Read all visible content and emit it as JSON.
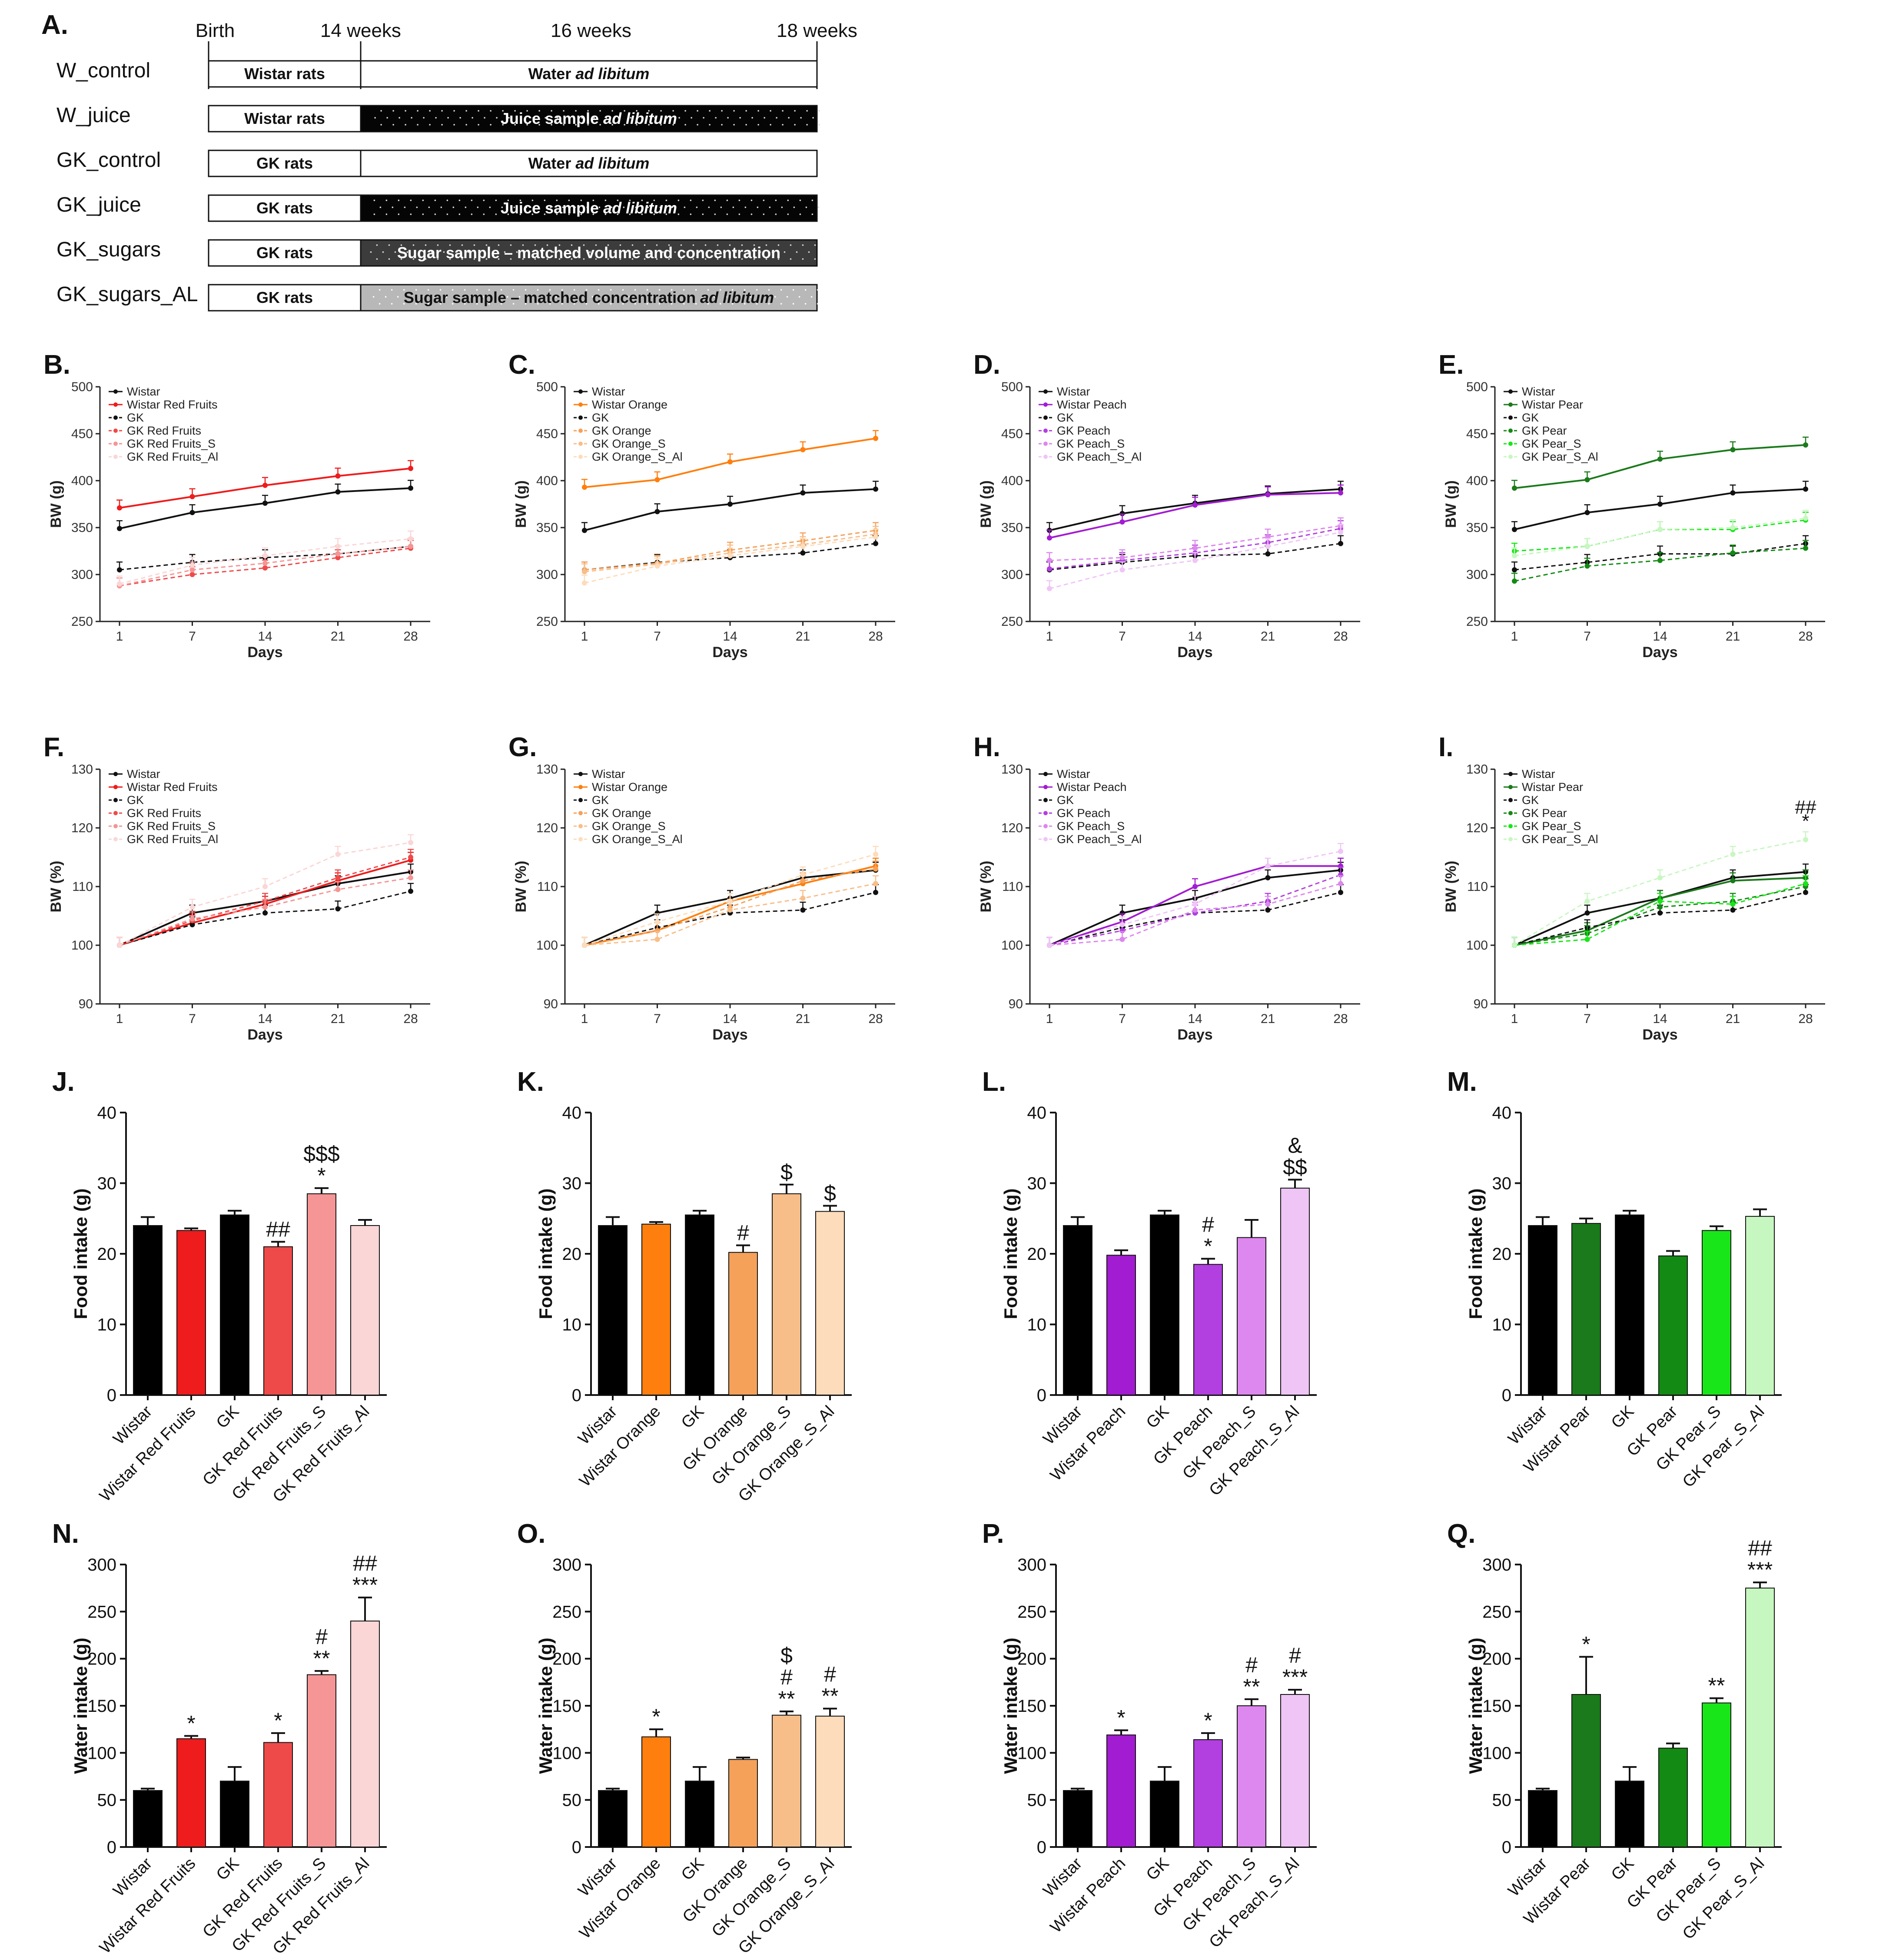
{
  "colors": {
    "red": [
      "#ee1c1c",
      "#ef4a4a",
      "#f59595",
      "#fbd6d6"
    ],
    "orange": [
      "#ff7f0e",
      "#f5a15a",
      "#f8be8a",
      "#fddcbb"
    ],
    "purple": [
      "#a21cd1",
      "#b23fe0",
      "#dd88ee",
      "#efc5f6"
    ],
    "green": [
      "#1b7a1b",
      "#138a13",
      "#19e619",
      "#c7f7c0"
    ]
  },
  "panelA": {
    "label": "A.",
    "timeline": [
      "Birth",
      "14 weeks",
      "16 weeks",
      "18 weeks"
    ],
    "rows": [
      {
        "name": "W_control",
        "animal": "Wistar rats",
        "treatment": "Water ",
        "treatment_italic": "ad libitum",
        "style": "white"
      },
      {
        "name": "W_juice",
        "animal": "Wistar rats",
        "treatment": "Juice sample ",
        "treatment_italic": "ad libitum",
        "style": "black"
      },
      {
        "name": "GK_control",
        "animal": "GK rats",
        "treatment": "Water ",
        "treatment_italic": "ad libitum",
        "style": "white"
      },
      {
        "name": "GK_juice",
        "animal": "GK rats",
        "treatment": "Juice sample ",
        "treatment_italic": "ad libitum",
        "style": "black"
      },
      {
        "name": "GK_sugars",
        "animal": "GK rats",
        "treatment": "Sugar sample – matched volume and concentration",
        "treatment_italic": "",
        "style": "dark"
      },
      {
        "name": "GK_sugars_AL",
        "animal": "GK rats",
        "treatment": "Sugar sample – matched concentration ",
        "treatment_italic": "ad libitum",
        "style": "gray"
      }
    ]
  },
  "chart_data": [
    {
      "panel": "B.",
      "type": "line",
      "fruit": "Red Fruits",
      "palette": "red",
      "xlabel": "Days",
      "ylabel": "BW (g)",
      "ylim": [
        250,
        500
      ],
      "yticks": [
        250,
        300,
        350,
        400,
        450,
        500
      ],
      "x": [
        1,
        7,
        14,
        21,
        28
      ],
      "series": [
        {
          "name": "Wistar",
          "values": [
            349,
            366,
            376,
            388,
            392
          ]
        },
        {
          "name": "Wistar Red Fruits",
          "values": [
            371,
            383,
            395,
            405,
            413
          ]
        },
        {
          "name": "GK",
          "values": [
            305,
            313,
            318,
            322,
            330
          ]
        },
        {
          "name": "GK Red Fruits",
          "values": [
            288,
            300,
            307,
            318,
            328
          ]
        },
        {
          "name": "GK Red Fruits_S",
          "values": [
            288,
            305,
            312,
            322,
            330
          ]
        },
        {
          "name": "GK Red Fruits_Al",
          "values": [
            290,
            310,
            320,
            330,
            338
          ]
        }
      ]
    },
    {
      "panel": "C.",
      "type": "line",
      "fruit": "Orange",
      "palette": "orange",
      "xlabel": "Days",
      "ylabel": "BW (g)",
      "ylim": [
        250,
        500
      ],
      "yticks": [
        250,
        300,
        350,
        400,
        450,
        500
      ],
      "x": [
        1,
        7,
        14,
        21,
        28
      ],
      "series": [
        {
          "name": "Wistar",
          "values": [
            347,
            367,
            375,
            387,
            391
          ]
        },
        {
          "name": "Wistar Orange",
          "values": [
            393,
            401,
            420,
            433,
            445
          ]
        },
        {
          "name": "GK",
          "values": [
            305,
            313,
            318,
            323,
            333
          ]
        },
        {
          "name": "GK Orange",
          "values": [
            305,
            312,
            326,
            336,
            347
          ]
        },
        {
          "name": "GK Orange_S",
          "values": [
            303,
            311,
            323,
            332,
            343
          ]
        },
        {
          "name": "GK Orange_S_Al",
          "values": [
            291,
            309,
            320,
            330,
            340
          ]
        }
      ]
    },
    {
      "panel": "D.",
      "type": "line",
      "fruit": "Peach",
      "palette": "purple",
      "xlabel": "Days",
      "ylabel": "BW (g)",
      "ylim": [
        250,
        500
      ],
      "yticks": [
        250,
        300,
        350,
        400,
        450,
        500
      ],
      "x": [
        1,
        7,
        14,
        21,
        28
      ],
      "series": [
        {
          "name": "Wistar",
          "values": [
            347,
            365,
            376,
            386,
            391
          ]
        },
        {
          "name": "Wistar Peach",
          "values": [
            339,
            356,
            374,
            385,
            387
          ]
        },
        {
          "name": "GK",
          "values": [
            305,
            313,
            320,
            322,
            333
          ]
        },
        {
          "name": "GK Peach",
          "values": [
            306,
            315,
            323,
            334,
            349
          ]
        },
        {
          "name": "GK Peach_S",
          "values": [
            315,
            318,
            328,
            340,
            352
          ]
        },
        {
          "name": "GK Peach_S_Al",
          "values": [
            285,
            305,
            315,
            330,
            345
          ]
        }
      ]
    },
    {
      "panel": "E.",
      "type": "line",
      "fruit": "Pear",
      "palette": "green",
      "xlabel": "Days",
      "ylabel": "BW (g)",
      "ylim": [
        250,
        500
      ],
      "yticks": [
        250,
        300,
        350,
        400,
        450,
        500
      ],
      "x": [
        1,
        7,
        14,
        21,
        28
      ],
      "series": [
        {
          "name": "Wistar",
          "values": [
            348,
            366,
            375,
            387,
            391
          ]
        },
        {
          "name": "Wistar Pear",
          "values": [
            392,
            401,
            423,
            433,
            438
          ]
        },
        {
          "name": "GK",
          "values": [
            305,
            313,
            322,
            322,
            333
          ]
        },
        {
          "name": "GK Pear",
          "values": [
            293,
            309,
            315,
            323,
            328
          ]
        },
        {
          "name": "GK Pear_S",
          "values": [
            325,
            330,
            348,
            348,
            358
          ]
        },
        {
          "name": "GK Pear_S_Al",
          "values": [
            320,
            330,
            348,
            350,
            360
          ]
        }
      ]
    },
    {
      "panel": "F.",
      "type": "line",
      "fruit": "Red Fruits",
      "palette": "red",
      "xlabel": "Days",
      "ylabel": "BW (%)",
      "ylim": [
        90,
        130
      ],
      "yticks": [
        90,
        100,
        110,
        120,
        130
      ],
      "x": [
        1,
        7,
        14,
        21,
        28
      ],
      "series": [
        {
          "name": "Wistar",
          "values": [
            100,
            105.5,
            107.5,
            110.5,
            112.5
          ]
        },
        {
          "name": "Wistar Red Fruits",
          "values": [
            100,
            103.8,
            107,
            111,
            114.5
          ]
        },
        {
          "name": "GK",
          "values": [
            100,
            103.5,
            105.5,
            106.2,
            109.2
          ]
        },
        {
          "name": "GK Red Fruits",
          "values": [
            100,
            104.2,
            107.5,
            111.5,
            115
          ]
        },
        {
          "name": "GK Red Fruits_S",
          "values": [
            100,
            104.5,
            106.5,
            109.5,
            111.5
          ]
        },
        {
          "name": "GK Red Fruits_Al",
          "values": [
            100,
            106.5,
            110,
            115.5,
            117.5
          ]
        }
      ]
    },
    {
      "panel": "G.",
      "type": "line",
      "fruit": "Orange",
      "palette": "orange",
      "xlabel": "Days",
      "ylabel": "BW (%)",
      "ylim": [
        90,
        130
      ],
      "yticks": [
        90,
        100,
        110,
        120,
        130
      ],
      "x": [
        1,
        7,
        14,
        21,
        28
      ],
      "series": [
        {
          "name": "Wistar",
          "values": [
            100,
            105.5,
            108,
            111.5,
            112.8
          ]
        },
        {
          "name": "Wistar Orange",
          "values": [
            100,
            102.5,
            107.5,
            110.5,
            113.5
          ]
        },
        {
          "name": "GK",
          "values": [
            100,
            103,
            105.5,
            106,
            109
          ]
        },
        {
          "name": "GK Orange",
          "values": [
            100,
            102.5,
            106.5,
            111,
            113
          ]
        },
        {
          "name": "GK Orange_S",
          "values": [
            100,
            101,
            106,
            108,
            110.5
          ]
        },
        {
          "name": "GK Orange_S_Al",
          "values": [
            100,
            104,
            107.5,
            112,
            115.5
          ]
        }
      ]
    },
    {
      "panel": "H.",
      "type": "line",
      "fruit": "Peach",
      "palette": "purple",
      "xlabel": "Days",
      "ylabel": "BW (%)",
      "ylim": [
        90,
        130
      ],
      "yticks": [
        90,
        100,
        110,
        120,
        130
      ],
      "x": [
        1,
        7,
        14,
        21,
        28
      ],
      "series": [
        {
          "name": "Wistar",
          "values": [
            100,
            105.5,
            108,
            111.5,
            112.8
          ]
        },
        {
          "name": "Wistar Peach",
          "values": [
            100,
            104,
            110,
            113.5,
            113.5
          ]
        },
        {
          "name": "GK",
          "values": [
            100,
            103,
            105.5,
            106,
            109
          ]
        },
        {
          "name": "GK Peach",
          "values": [
            100,
            102.5,
            105.5,
            107.5,
            112
          ]
        },
        {
          "name": "GK Peach_S",
          "values": [
            100,
            101,
            106,
            107,
            110.5
          ]
        },
        {
          "name": "GK Peach_S_Al",
          "values": [
            100,
            103.5,
            107,
            113.5,
            116
          ]
        }
      ]
    },
    {
      "panel": "I.",
      "type": "line",
      "fruit": "Pear",
      "palette": "green",
      "xlabel": "Days",
      "ylabel": "BW (%)",
      "ylim": [
        90,
        130
      ],
      "yticks": [
        90,
        100,
        110,
        120,
        130
      ],
      "x": [
        1,
        7,
        14,
        21,
        28
      ],
      "annotations": [
        {
          "series": "GK Pear_S_Al",
          "x": 28,
          "text": "##"
        },
        {
          "series": "GK Pear_S_Al",
          "x": 28,
          "text": "*"
        }
      ],
      "series": [
        {
          "name": "Wistar",
          "values": [
            100,
            105.5,
            108,
            111.5,
            112.5
          ]
        },
        {
          "name": "Wistar Pear",
          "values": [
            100,
            102.5,
            108,
            111,
            111.5
          ]
        },
        {
          "name": "GK",
          "values": [
            100,
            103,
            105.5,
            106,
            109
          ]
        },
        {
          "name": "GK Pear",
          "values": [
            100,
            102,
            106.5,
            107.5,
            110
          ]
        },
        {
          "name": "GK Pear_S",
          "values": [
            100,
            101,
            107.5,
            107,
            110.5
          ]
        },
        {
          "name": "GK Pear_S_Al",
          "values": [
            100,
            107.5,
            111.5,
            115.5,
            118
          ]
        }
      ]
    },
    {
      "panel": "J.",
      "type": "bar",
      "palette": "red",
      "ylabel": "Food intake (g)",
      "ylim": [
        0,
        40
      ],
      "yticks": [
        0,
        10,
        20,
        30,
        40
      ],
      "categories": [
        "Wistar",
        "Wistar Red Fruits",
        "GK",
        "GK Red Fruits",
        "GK Red Fruits_S",
        "GK Red Fruits_Al"
      ],
      "values": [
        24,
        23.3,
        25.5,
        21,
        28.5,
        24
      ],
      "errors": [
        1.2,
        0.3,
        0.6,
        0.7,
        0.8,
        0.8
      ],
      "labels": [
        [],
        [],
        [],
        [
          "##"
        ],
        [
          "$$$",
          "*"
        ],
        []
      ]
    },
    {
      "panel": "K.",
      "type": "bar",
      "palette": "orange",
      "ylabel": "Food intake (g)",
      "ylim": [
        0,
        40
      ],
      "yticks": [
        0,
        10,
        20,
        30,
        40
      ],
      "categories": [
        "Wistar",
        "Wistar Orange",
        "GK",
        "GK Orange",
        "GK Orange_S",
        "GK Orange_S_Al"
      ],
      "values": [
        24,
        24.2,
        25.5,
        20.2,
        28.5,
        26
      ],
      "errors": [
        1.2,
        0.3,
        0.6,
        1,
        1.3,
        0.8
      ],
      "labels": [
        [],
        [],
        [],
        [
          "#"
        ],
        [
          "$"
        ],
        [
          "$"
        ]
      ]
    },
    {
      "panel": "L.",
      "type": "bar",
      "palette": "purple",
      "ylabel": "Food intake (g)",
      "ylim": [
        0,
        40
      ],
      "yticks": [
        0,
        10,
        20,
        30,
        40
      ],
      "categories": [
        "Wistar",
        "Wistar Peach",
        "GK",
        "GK Peach",
        "GK Peach_S",
        "GK Peach_S_Al"
      ],
      "values": [
        24,
        19.8,
        25.5,
        18.5,
        22.3,
        29.3
      ],
      "errors": [
        1.2,
        0.7,
        0.6,
        0.8,
        2.5,
        1.2
      ],
      "labels": [
        [],
        [],
        [],
        [
          "#",
          "*"
        ],
        [],
        [
          "&",
          "$$"
        ]
      ]
    },
    {
      "panel": "M.",
      "type": "bar",
      "palette": "green",
      "ylabel": "Food intake (g)",
      "ylim": [
        0,
        40
      ],
      "yticks": [
        0,
        10,
        20,
        30,
        40
      ],
      "categories": [
        "Wistar",
        "Wistar Pear",
        "GK",
        "GK Pear",
        "GK Pear_S",
        "GK Pear_S_Al"
      ],
      "values": [
        24,
        24.3,
        25.5,
        19.7,
        23.3,
        25.3
      ],
      "errors": [
        1.2,
        0.7,
        0.6,
        0.7,
        0.6,
        1
      ]
    },
    {
      "panel": "N.",
      "type": "bar",
      "palette": "red",
      "ylabel": "Water intake (g)",
      "ylim": [
        0,
        300
      ],
      "yticks": [
        0,
        50,
        100,
        150,
        200,
        250,
        300
      ],
      "categories": [
        "Wistar",
        "Wistar Red Fruits",
        "GK",
        "GK Red Fruits",
        "GK Red Fruits_S",
        "GK Red Fruits_Al"
      ],
      "values": [
        60,
        115,
        70,
        111,
        183,
        240
      ],
      "errors": [
        2,
        3,
        15,
        10,
        4,
        25
      ],
      "labels": [
        [],
        [
          "*"
        ],
        [],
        [
          "*"
        ],
        [
          "#",
          "**"
        ],
        [
          "##",
          "***"
        ]
      ]
    },
    {
      "panel": "O.",
      "type": "bar",
      "palette": "orange",
      "ylabel": "Water intake (g)",
      "ylim": [
        0,
        300
      ],
      "yticks": [
        0,
        50,
        100,
        150,
        200,
        250,
        300
      ],
      "categories": [
        "Wistar",
        "Wistar Orange",
        "GK",
        "GK Orange",
        "GK Orange_S",
        "GK Orange_S_Al"
      ],
      "values": [
        60,
        117,
        70,
        93,
        140,
        139
      ],
      "errors": [
        2,
        8,
        15,
        2,
        4,
        8
      ],
      "labels": [
        [],
        [
          "*"
        ],
        [],
        [],
        [
          "$",
          "#",
          "**"
        ],
        [
          "#",
          "**"
        ]
      ]
    },
    {
      "panel": "P.",
      "type": "bar",
      "palette": "purple",
      "ylabel": "Water intake (g)",
      "ylim": [
        0,
        300
      ],
      "yticks": [
        0,
        50,
        100,
        150,
        200,
        250,
        300
      ],
      "categories": [
        "Wistar",
        "Wistar Peach",
        "GK",
        "GK Peach",
        "GK Peach_S",
        "GK Peach_S_Al"
      ],
      "values": [
        60,
        119,
        70,
        114,
        150,
        162
      ],
      "errors": [
        2,
        5,
        15,
        7,
        7,
        5
      ],
      "labels": [
        [],
        [
          "*"
        ],
        [],
        [
          "*"
        ],
        [
          "#",
          "**"
        ],
        [
          "#",
          "***"
        ]
      ]
    },
    {
      "panel": "Q.",
      "type": "bar",
      "palette": "green",
      "ylabel": "Water intake (g)",
      "ylim": [
        0,
        300
      ],
      "yticks": [
        0,
        50,
        100,
        150,
        200,
        250,
        300
      ],
      "categories": [
        "Wistar",
        "Wistar Pear",
        "GK",
        "GK Pear",
        "GK Pear_S",
        "GK Pear_S_Al"
      ],
      "values": [
        60,
        162,
        70,
        105,
        153,
        275
      ],
      "errors": [
        2,
        40,
        15,
        5,
        5,
        6
      ],
      "labels": [
        [],
        [
          "*"
        ],
        [],
        [],
        [
          "**"
        ],
        [
          "##",
          "***"
        ]
      ]
    }
  ]
}
